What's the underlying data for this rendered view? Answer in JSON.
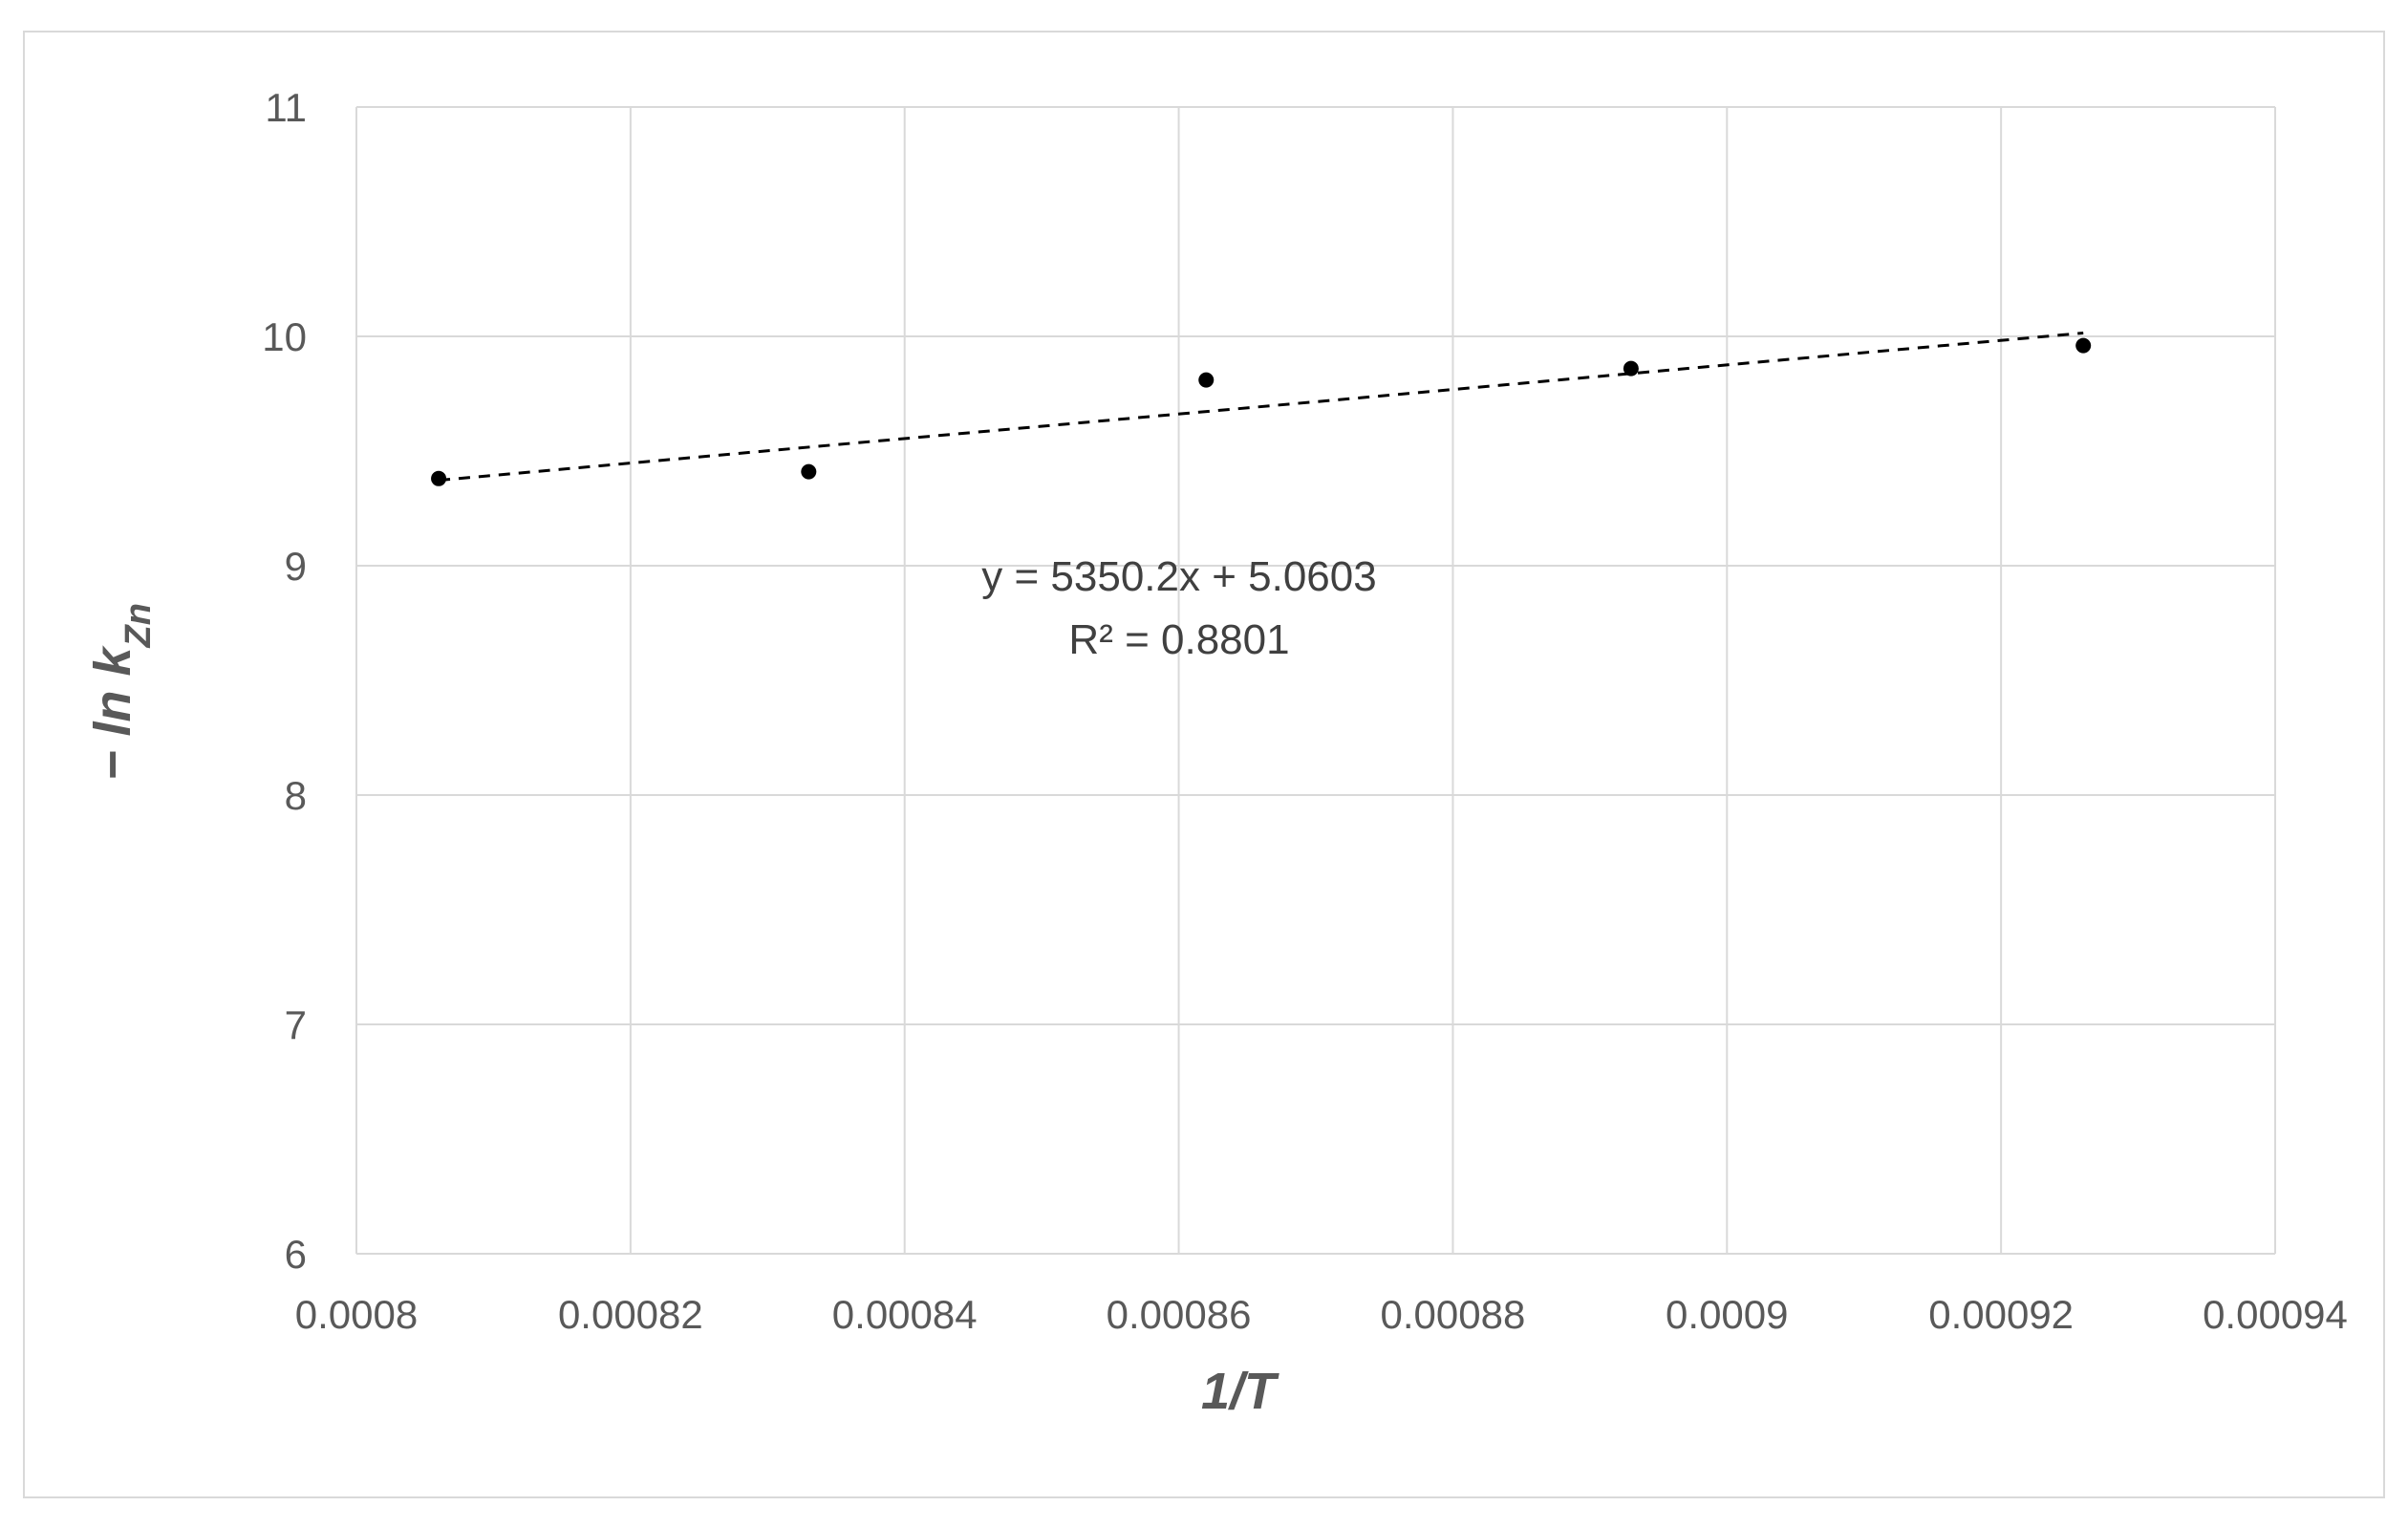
{
  "chart_data": {
    "type": "scatter",
    "xlabel": "1/T",
    "ylabel_main": "− ln k",
    "ylabel_subscript": "Zn",
    "xlim": [
      0.0008,
      0.00094
    ],
    "ylim": [
      6,
      11
    ],
    "x_ticks": [
      "0.0008",
      "0.00082",
      "0.00084",
      "0.00086",
      "0.00088",
      "0.0009",
      "0.00092",
      "0.00094"
    ],
    "x_tick_values": [
      0.0008,
      0.00082,
      0.00084,
      0.00086,
      0.00088,
      0.0009,
      0.00092,
      0.00094
    ],
    "y_ticks": [
      "6",
      "7",
      "8",
      "9",
      "10",
      "11"
    ],
    "y_tick_values": [
      6,
      7,
      8,
      9,
      10,
      11
    ],
    "grid": true,
    "series": [
      {
        "points": [
          {
            "x": 0.000806,
            "y": 9.38
          },
          {
            "x": 0.000833,
            "y": 9.41
          },
          {
            "x": 0.000862,
            "y": 9.81
          },
          {
            "x": 0.000893,
            "y": 9.86
          },
          {
            "x": 0.000926,
            "y": 9.96
          }
        ],
        "marker_color": "#000000"
      }
    ],
    "trendline": {
      "type": "linear",
      "slope": 5350.2,
      "intercept": 5.0603,
      "x_range": [
        0.000806,
        0.000926
      ],
      "style": "dashed",
      "color": "#000000"
    },
    "annotations": {
      "equation": "y = 5350.2x + 5.0603",
      "r_squared": "R² = 0.8801"
    },
    "colors": {
      "grid": "#d9d9d9",
      "tick_text": "#595959",
      "annotation_text": "#404040",
      "marker": "#000000"
    }
  }
}
